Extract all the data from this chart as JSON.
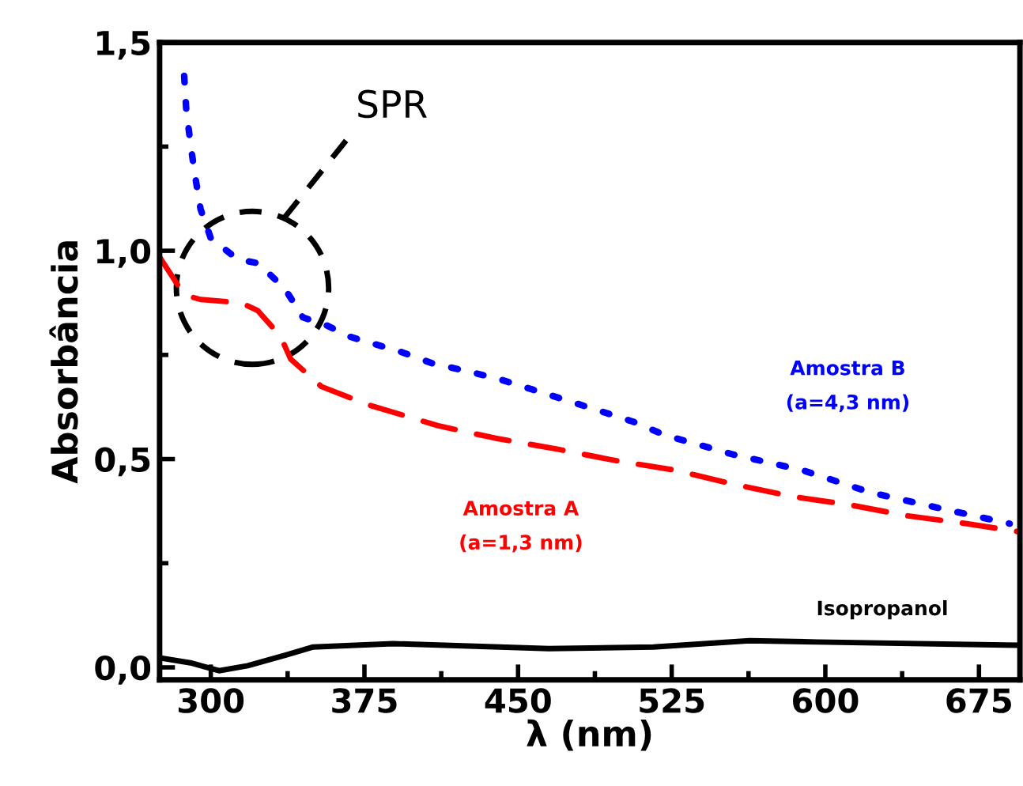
{
  "chart_data": {
    "type": "line",
    "xlabel": "λ (nm)",
    "ylabel": "Absorbância",
    "xlim": [
      275,
      695
    ],
    "xticks": [
      300,
      375,
      450,
      525,
      600,
      675
    ],
    "ylim": [
      -0.03,
      1.5
    ],
    "yticks": [
      {
        "value": 0,
        "label": "0,0"
      },
      {
        "value": 0.5,
        "label": "0,5"
      },
      {
        "value": 1.0,
        "label": "1,0"
      },
      {
        "value": 1.5,
        "label": "1,5"
      }
    ],
    "grid": false,
    "legend": false,
    "marker": "none",
    "annotations": [
      "SPR"
    ],
    "series": [
      {
        "name": "Amostra B\n(a=4,3 nm)",
        "color": "#0000ff",
        "line_style": "dotted",
        "x": [
          287,
          288,
          290,
          292,
          295,
          300,
          313,
          323,
          336,
          345,
          357,
          367,
          393,
          408,
          426,
          440,
          457,
          489,
          506,
          522,
          555,
          589,
          622,
          655,
          690
        ],
        "values": [
          1.42,
          1.34,
          1.26,
          1.19,
          1.1,
          1.03,
          0.98,
          0.97,
          0.91,
          0.84,
          0.82,
          0.795,
          0.757,
          0.73,
          0.71,
          0.693,
          0.667,
          0.617,
          0.59,
          0.557,
          0.511,
          0.473,
          0.42,
          0.383,
          0.345
        ]
      },
      {
        "name": "Amostra A\n(a=1,3 nm)",
        "color": "#ff0000",
        "line_style": "dashed",
        "x": [
          275,
          287,
          295,
          315,
          323,
          334,
          339,
          354,
          377,
          411,
          439,
          470,
          498,
          527,
          555,
          584,
          612,
          640,
          669,
          694
        ],
        "values": [
          0.985,
          0.894,
          0.883,
          0.875,
          0.856,
          0.795,
          0.74,
          0.674,
          0.63,
          0.58,
          0.55,
          0.523,
          0.496,
          0.473,
          0.44,
          0.41,
          0.39,
          0.364,
          0.345,
          0.326
        ]
      },
      {
        "name": "Isopropanol",
        "color": "#000000",
        "line_style": "solid",
        "x": [
          275,
          290,
          304,
          318,
          337,
          350,
          389,
          465,
          516,
          563,
          596,
          695
        ],
        "values": [
          0.023,
          0.011,
          -0.008,
          0.004,
          0.03,
          0.049,
          0.057,
          0.045,
          0.049,
          0.064,
          0.061,
          0.053
        ]
      }
    ]
  }
}
